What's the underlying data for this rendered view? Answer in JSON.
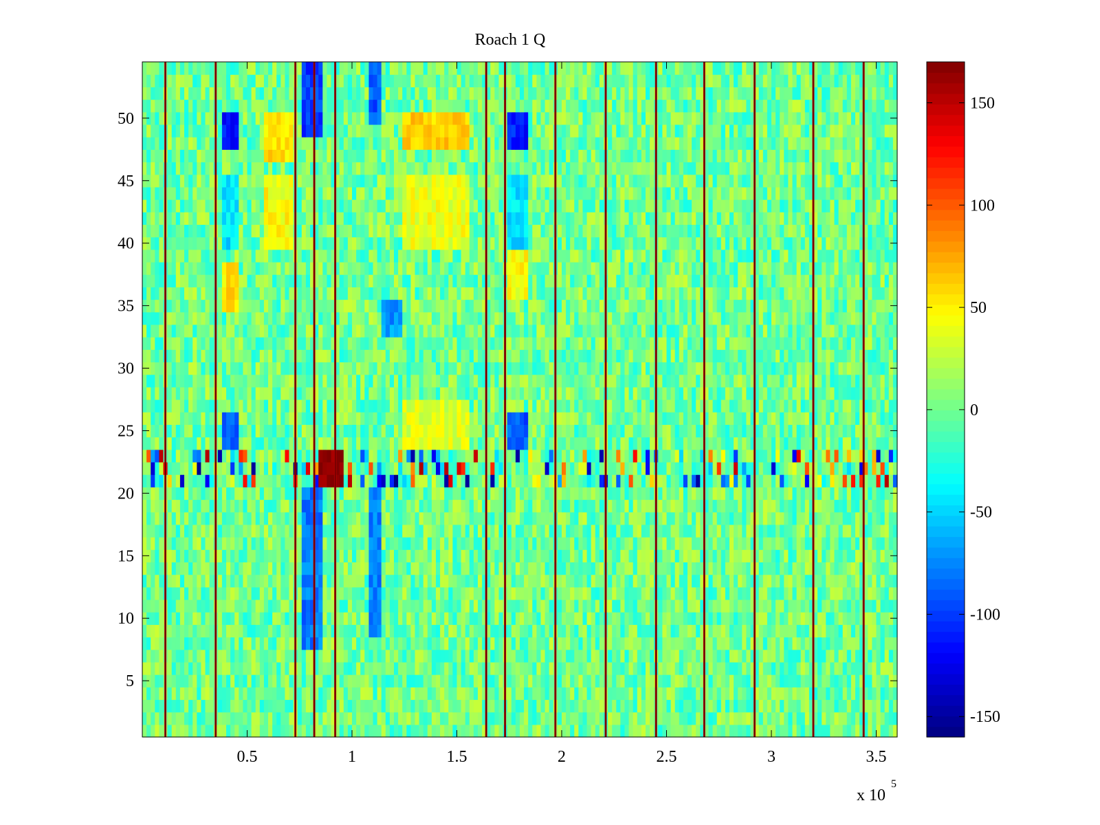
{
  "chart_data": {
    "type": "heatmap",
    "title": "Roach 1 Q",
    "xlabel": "",
    "ylabel": "",
    "x_multiplier_label": "x 10",
    "x_multiplier_exponent": "5",
    "xlim": [
      0,
      360000
    ],
    "ylim": [
      0.5,
      54.5
    ],
    "x_ticks": [
      50000,
      100000,
      150000,
      200000,
      250000,
      300000,
      350000
    ],
    "x_tick_labels": [
      "0.5",
      "1",
      "1.5",
      "2",
      "2.5",
      "3",
      "3.5"
    ],
    "y_ticks": [
      5,
      10,
      15,
      20,
      25,
      30,
      35,
      40,
      45,
      50
    ],
    "y_tick_labels": [
      "5",
      "10",
      "15",
      "20",
      "25",
      "30",
      "35",
      "40",
      "45",
      "50"
    ],
    "rows": 54,
    "colorbar": {
      "colormap": "jet",
      "clim": [
        -160,
        170
      ],
      "ticks": [
        -150,
        -100,
        -50,
        0,
        50,
        100,
        150
      ],
      "tick_labels": [
        "-150",
        "-100",
        "-50",
        "0",
        "50",
        "100",
        "150"
      ]
    },
    "background_value": 0,
    "spike_columns_x": [
      11000,
      35000,
      73000,
      82000,
      92000,
      164000,
      173000,
      197000,
      221000,
      245000,
      268000,
      292000,
      320000,
      344000
    ],
    "spike_value": 150,
    "anomalous_rows": [
      21,
      22,
      23
    ],
    "regions": [
      {
        "x": [
          38000,
          46000
        ],
        "y": [
          48,
          50
        ],
        "value": -110
      },
      {
        "x": [
          38000,
          46000
        ],
        "y": [
          24,
          26
        ],
        "value": -90
      },
      {
        "x": [
          38000,
          46000
        ],
        "y": [
          40,
          45
        ],
        "value": -45
      },
      {
        "x": [
          175000,
          184000
        ],
        "y": [
          48,
          50
        ],
        "value": -110
      },
      {
        "x": [
          175000,
          184000
        ],
        "y": [
          24,
          26
        ],
        "value": -90
      },
      {
        "x": [
          175000,
          184000
        ],
        "y": [
          40,
          45
        ],
        "value": -45
      },
      {
        "x": [
          76000,
          85000
        ],
        "y": [
          49,
          54
        ],
        "value": -100
      },
      {
        "x": [
          76000,
          85000
        ],
        "y": [
          8,
          20
        ],
        "value": -80
      },
      {
        "x": [
          108000,
          114000
        ],
        "y": [
          50,
          54
        ],
        "value": -90
      },
      {
        "x": [
          108000,
          114000
        ],
        "y": [
          9,
          20
        ],
        "value": -75
      },
      {
        "x": [
          115000,
          124000
        ],
        "y": [
          33,
          35
        ],
        "value": -70
      },
      {
        "x": [
          58000,
          72000
        ],
        "y": [
          40,
          45
        ],
        "value": 45
      },
      {
        "x": [
          58000,
          72000
        ],
        "y": [
          47,
          50
        ],
        "value": 55
      },
      {
        "x": [
          125000,
          156000
        ],
        "y": [
          40,
          45
        ],
        "value": 40
      },
      {
        "x": [
          125000,
          156000
        ],
        "y": [
          48,
          50
        ],
        "value": 60
      },
      {
        "x": [
          125000,
          156000
        ],
        "y": [
          24,
          27
        ],
        "value": 35
      },
      {
        "x": [
          38000,
          46000
        ],
        "y": [
          35,
          38
        ],
        "value": 55
      },
      {
        "x": [
          175000,
          184000
        ],
        "y": [
          36,
          39
        ],
        "value": 45
      },
      {
        "x": [
          84000,
          95000
        ],
        "y": [
          21,
          23
        ],
        "value": 170
      }
    ]
  }
}
